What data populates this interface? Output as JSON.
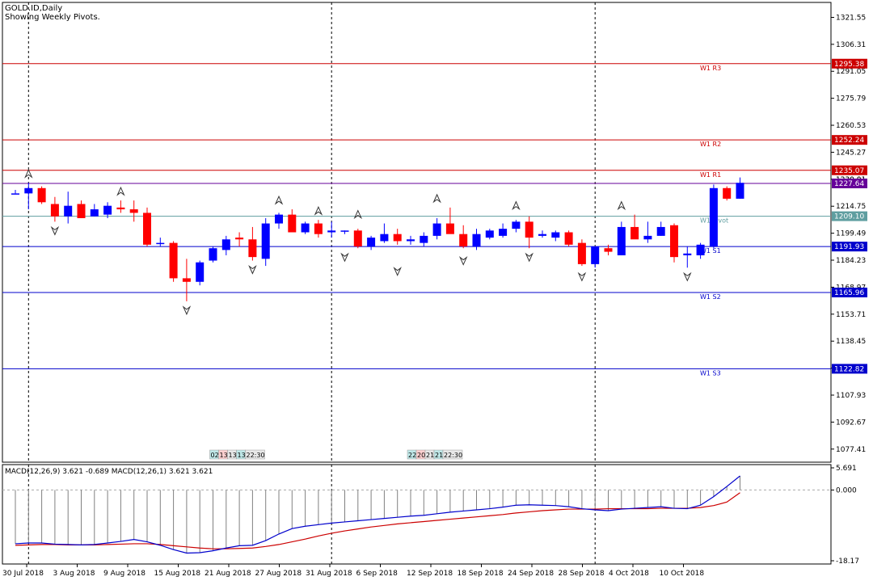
{
  "header": {
    "symbol": "GOLD.ID,Daily",
    "indicator_note": "Showing Weekly Pivots."
  },
  "colors": {
    "bull": "#0000ff",
    "bear": "#ff0000",
    "resistance": "#cc0000",
    "support": "#0000cc",
    "pivot": "#5f9ea0",
    "current_price_bg": "#660099",
    "macd_main": "#0000cc",
    "macd_signal": "#cc0000",
    "histogram": "#808080"
  },
  "chart_data": {
    "type": "candlestick",
    "ylim": [
      1070,
      1330
    ],
    "y_ticks": [
      "1321.55",
      "1306.31",
      "1291.05",
      "1275.79",
      "1260.53",
      "1245.27",
      "1230.01",
      "1214.75",
      "1199.49",
      "1184.23",
      "1168.97",
      "1153.71",
      "1138.45",
      "1123.19",
      "1107.93",
      "1092.67",
      "1077.41"
    ],
    "x_labels": [
      "30 Jul 2018",
      "3 Aug 2018",
      "9 Aug 2018",
      "15 Aug 2018",
      "21 Aug 2018",
      "27 Aug 2018",
      "31 Aug 2018",
      "6 Sep 2018",
      "12 Sep 2018",
      "18 Sep 2018",
      "24 Sep 2018",
      "28 Sep 2018",
      "4 Oct 2018",
      "10 Oct 2018"
    ],
    "candles": [
      {
        "o": 1222,
        "h": 1224,
        "l": 1222,
        "c": 1222
      },
      {
        "o": 1222,
        "h": 1228,
        "l": 1213,
        "c": 1225
      },
      {
        "o": 1225,
        "h": 1226,
        "l": 1216,
        "c": 1217
      },
      {
        "o": 1216,
        "h": 1220,
        "l": 1206,
        "c": 1209
      },
      {
        "o": 1209,
        "h": 1223,
        "l": 1205,
        "c": 1215
      },
      {
        "o": 1216,
        "h": 1218,
        "l": 1208,
        "c": 1208
      },
      {
        "o": 1209,
        "h": 1216,
        "l": 1209,
        "c": 1213
      },
      {
        "o": 1210,
        "h": 1217,
        "l": 1208,
        "c": 1215
      },
      {
        "o": 1214,
        "h": 1218,
        "l": 1211,
        "c": 1213
      },
      {
        "o": 1213,
        "h": 1218,
        "l": 1206,
        "c": 1211
      },
      {
        "o": 1211,
        "h": 1214,
        "l": 1192,
        "c": 1193
      },
      {
        "o": 1194,
        "h": 1197,
        "l": 1192,
        "c": 1194
      },
      {
        "o": 1194,
        "h": 1195,
        "l": 1172,
        "c": 1174
      },
      {
        "o": 1174,
        "h": 1185,
        "l": 1161,
        "c": 1172
      },
      {
        "o": 1172,
        "h": 1184,
        "l": 1170,
        "c": 1183
      },
      {
        "o": 1184,
        "h": 1192,
        "l": 1183,
        "c": 1191
      },
      {
        "o": 1190,
        "h": 1198,
        "l": 1187,
        "c": 1196
      },
      {
        "o": 1197,
        "h": 1200,
        "l": 1192,
        "c": 1196
      },
      {
        "o": 1196,
        "h": 1203,
        "l": 1184,
        "c": 1186
      },
      {
        "o": 1185,
        "h": 1208,
        "l": 1181,
        "c": 1205
      },
      {
        "o": 1205,
        "h": 1211,
        "l": 1202,
        "c": 1210
      },
      {
        "o": 1210,
        "h": 1213,
        "l": 1200,
        "c": 1200
      },
      {
        "o": 1200,
        "h": 1206,
        "l": 1199,
        "c": 1205
      },
      {
        "o": 1205,
        "h": 1207,
        "l": 1197,
        "c": 1199
      },
      {
        "o": 1200,
        "h": 1206,
        "l": 1197,
        "c": 1201
      },
      {
        "o": 1201,
        "h": 1201,
        "l": 1199,
        "c": 1201
      },
      {
        "o": 1201,
        "h": 1202,
        "l": 1191,
        "c": 1192
      },
      {
        "o": 1192,
        "h": 1198,
        "l": 1190,
        "c": 1197
      },
      {
        "o": 1195,
        "h": 1205,
        "l": 1194,
        "c": 1199
      },
      {
        "o": 1199,
        "h": 1202,
        "l": 1193,
        "c": 1195
      },
      {
        "o": 1195,
        "h": 1198,
        "l": 1193,
        "c": 1196
      },
      {
        "o": 1194,
        "h": 1200,
        "l": 1192,
        "c": 1198
      },
      {
        "o": 1198,
        "h": 1208,
        "l": 1196,
        "c": 1205
      },
      {
        "o": 1205,
        "h": 1214,
        "l": 1201,
        "c": 1199
      },
      {
        "o": 1199,
        "h": 1204,
        "l": 1191,
        "c": 1192
      },
      {
        "o": 1192,
        "h": 1202,
        "l": 1190,
        "c": 1199
      },
      {
        "o": 1197,
        "h": 1202,
        "l": 1196,
        "c": 1201
      },
      {
        "o": 1198,
        "h": 1205,
        "l": 1197,
        "c": 1202
      },
      {
        "o": 1202,
        "h": 1207,
        "l": 1200,
        "c": 1206
      },
      {
        "o": 1206,
        "h": 1209,
        "l": 1191,
        "c": 1197
      },
      {
        "o": 1198,
        "h": 1201,
        "l": 1197,
        "c": 1199
      },
      {
        "o": 1197,
        "h": 1201,
        "l": 1195,
        "c": 1200
      },
      {
        "o": 1200,
        "h": 1201,
        "l": 1192,
        "c": 1193
      },
      {
        "o": 1194,
        "h": 1196,
        "l": 1181,
        "c": 1182
      },
      {
        "o": 1182,
        "h": 1192,
        "l": 1180,
        "c": 1192
      },
      {
        "o": 1191,
        "h": 1193,
        "l": 1187,
        "c": 1189
      },
      {
        "o": 1187,
        "h": 1206,
        "l": 1187,
        "c": 1203
      },
      {
        "o": 1203,
        "h": 1210,
        "l": 1197,
        "c": 1196
      },
      {
        "o": 1196,
        "h": 1206,
        "l": 1194,
        "c": 1198
      },
      {
        "o": 1198,
        "h": 1206,
        "l": 1198,
        "c": 1203
      },
      {
        "o": 1204,
        "h": 1205,
        "l": 1183,
        "c": 1186
      },
      {
        "o": 1187,
        "h": 1192,
        "l": 1180,
        "c": 1188
      },
      {
        "o": 1187,
        "h": 1194,
        "l": 1185,
        "c": 1193
      },
      {
        "o": 1192,
        "h": 1227,
        "l": 1191,
        "c": 1225
      },
      {
        "o": 1225,
        "h": 1226,
        "l": 1218,
        "c": 1219
      },
      {
        "o": 1219,
        "h": 1231,
        "l": 1219,
        "c": 1228
      }
    ],
    "fractals": [
      {
        "i": 1,
        "type": "up",
        "price": 1228
      },
      {
        "i": 3,
        "type": "down",
        "price": 1206
      },
      {
        "i": 8,
        "type": "up",
        "price": 1218
      },
      {
        "i": 13,
        "type": "down",
        "price": 1161
      },
      {
        "i": 18,
        "type": "down",
        "price": 1184
      },
      {
        "i": 20,
        "type": "up",
        "price": 1213
      },
      {
        "i": 23,
        "type": "up",
        "price": 1207
      },
      {
        "i": 25,
        "type": "down",
        "price": 1191
      },
      {
        "i": 26,
        "type": "up",
        "price": 1205
      },
      {
        "i": 29,
        "type": "down",
        "price": 1183
      },
      {
        "i": 32,
        "type": "up",
        "price": 1214
      },
      {
        "i": 34,
        "type": "down",
        "price": 1189
      },
      {
        "i": 38,
        "type": "up",
        "price": 1210
      },
      {
        "i": 39,
        "type": "down",
        "price": 1191
      },
      {
        "i": 43,
        "type": "down",
        "price": 1180
      },
      {
        "i": 46,
        "type": "up",
        "price": 1210
      },
      {
        "i": 51,
        "type": "down",
        "price": 1180
      }
    ],
    "pivot_levels": [
      {
        "name": "W1 R3",
        "price": 1295.38,
        "label": "1295.38",
        "kind": "resistance"
      },
      {
        "name": "W1 R2",
        "price": 1252.24,
        "label": "1252.24",
        "kind": "resistance"
      },
      {
        "name": "W1 R1",
        "price": 1235.07,
        "label": "1235.07",
        "kind": "resistance"
      },
      {
        "name": "W1 Pivot",
        "price": 1209.1,
        "label": "1209.10",
        "kind": "pivot"
      },
      {
        "name": "W1 S1",
        "price": 1191.93,
        "label": "1191.93",
        "kind": "support"
      },
      {
        "name": "W1 S2",
        "price": 1165.96,
        "label": "1165.96",
        "kind": "support"
      },
      {
        "name": "W1 S3",
        "price": 1122.82,
        "label": "1122.82",
        "kind": "support"
      }
    ],
    "current_price": {
      "price": 1227.64,
      "label": "1227.64"
    },
    "hidden_tick_label": "1230.01",
    "period_separators": [
      1,
      24,
      44
    ],
    "timers": [
      {
        "at_candle": 15,
        "values": [
          "02:",
          "13:",
          "13:",
          "13:",
          "22:30"
        ]
      },
      {
        "at_candle": 30,
        "values": [
          "22:",
          "20:",
          "21:",
          "21:",
          "22:30"
        ]
      }
    ],
    "macd": {
      "label": "MACD(12,26,9) 3.621 -0.689 MACD(12,26,1) 3.621 3.621",
      "ylim": [
        -18.17,
        5.691
      ],
      "y_ticks": [
        "5.691",
        "0.000",
        "-18.17"
      ],
      "main": [
        -13.8,
        -13.6,
        -13.6,
        -13.9,
        -14.0,
        -14.1,
        -14.0,
        -13.6,
        -13.2,
        -12.7,
        -13.3,
        -14.2,
        -15.3,
        -16.2,
        -16.1,
        -15.6,
        -14.9,
        -14.3,
        -14.2,
        -13.0,
        -11.3,
        -9.9,
        -9.3,
        -8.9,
        -8.5,
        -8.2,
        -7.9,
        -7.6,
        -7.3,
        -7.0,
        -6.7,
        -6.5,
        -6.1,
        -5.7,
        -5.4,
        -5.1,
        -4.8,
        -4.4,
        -3.9,
        -3.8,
        -3.9,
        -4.0,
        -4.3,
        -4.8,
        -5.1,
        -5.3,
        -4.9,
        -4.7,
        -4.5,
        -4.3,
        -4.7,
        -4.8,
        -3.9,
        -1.7,
        0.9,
        3.621
      ],
      "signal": [
        -14.2,
        -14.1,
        -14.0,
        -14.0,
        -14.1,
        -14.1,
        -14.1,
        -14.0,
        -13.9,
        -13.8,
        -13.8,
        -14.0,
        -14.3,
        -14.6,
        -14.9,
        -15.1,
        -15.1,
        -15.0,
        -14.9,
        -14.5,
        -14.0,
        -13.3,
        -12.6,
        -11.8,
        -11.1,
        -10.5,
        -10.0,
        -9.5,
        -9.1,
        -8.7,
        -8.4,
        -8.1,
        -7.8,
        -7.5,
        -7.2,
        -6.9,
        -6.6,
        -6.3,
        -5.9,
        -5.6,
        -5.3,
        -5.1,
        -4.9,
        -4.9,
        -4.9,
        -4.8,
        -4.8,
        -4.8,
        -4.8,
        -4.7,
        -4.7,
        -4.7,
        -4.5,
        -4.0,
        -3.1,
        -0.689
      ]
    }
  }
}
